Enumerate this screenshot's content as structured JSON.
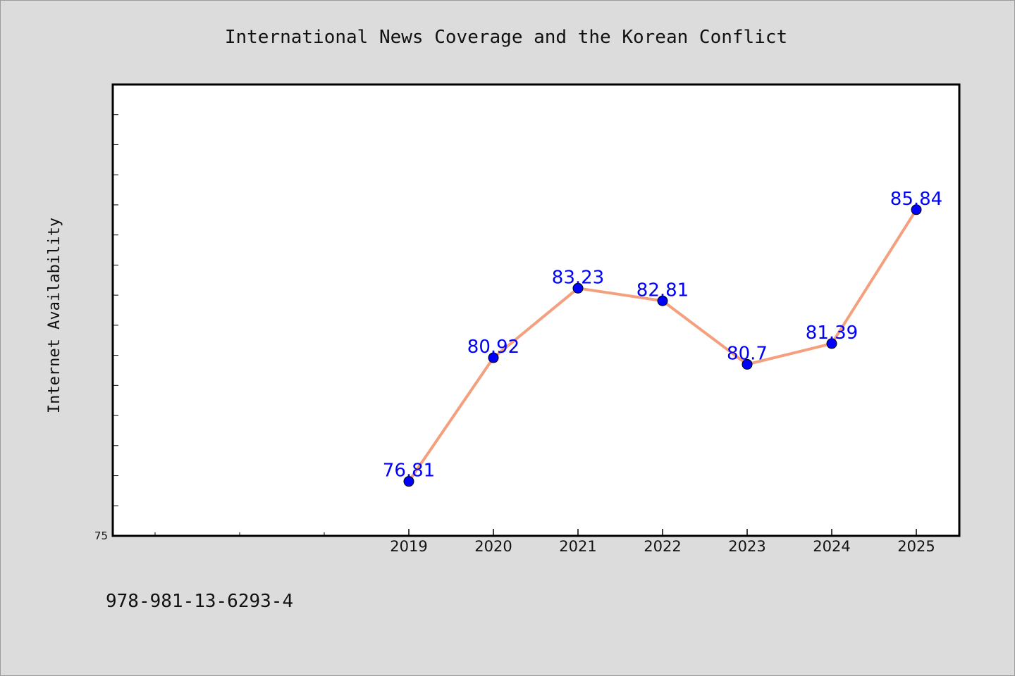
{
  "chart_data": {
    "type": "line",
    "title": "International News Coverage and the Korean Conflict",
    "xlabel": "",
    "ylabel": "Internet Availability",
    "x": [
      "2019",
      "2020",
      "2021",
      "2022",
      "2023",
      "2024",
      "2025"
    ],
    "values": [
      76.81,
      80.92,
      83.23,
      82.81,
      80.7,
      81.39,
      85.84
    ],
    "data_labels": [
      "76.81",
      "80.92",
      "83.23",
      "82.81",
      "80.7",
      "81.39",
      "85.84"
    ],
    "y_tick_labels": [
      "75"
    ],
    "ylim": [
      75,
      90
    ],
    "xlim_slots": 10,
    "line_color": "#f4a07e",
    "marker_color": "#0000ff",
    "label_color": "#0000ff",
    "grid": false,
    "legend": "none"
  },
  "footer": {
    "isbn": "978-981-13-6293-4"
  }
}
